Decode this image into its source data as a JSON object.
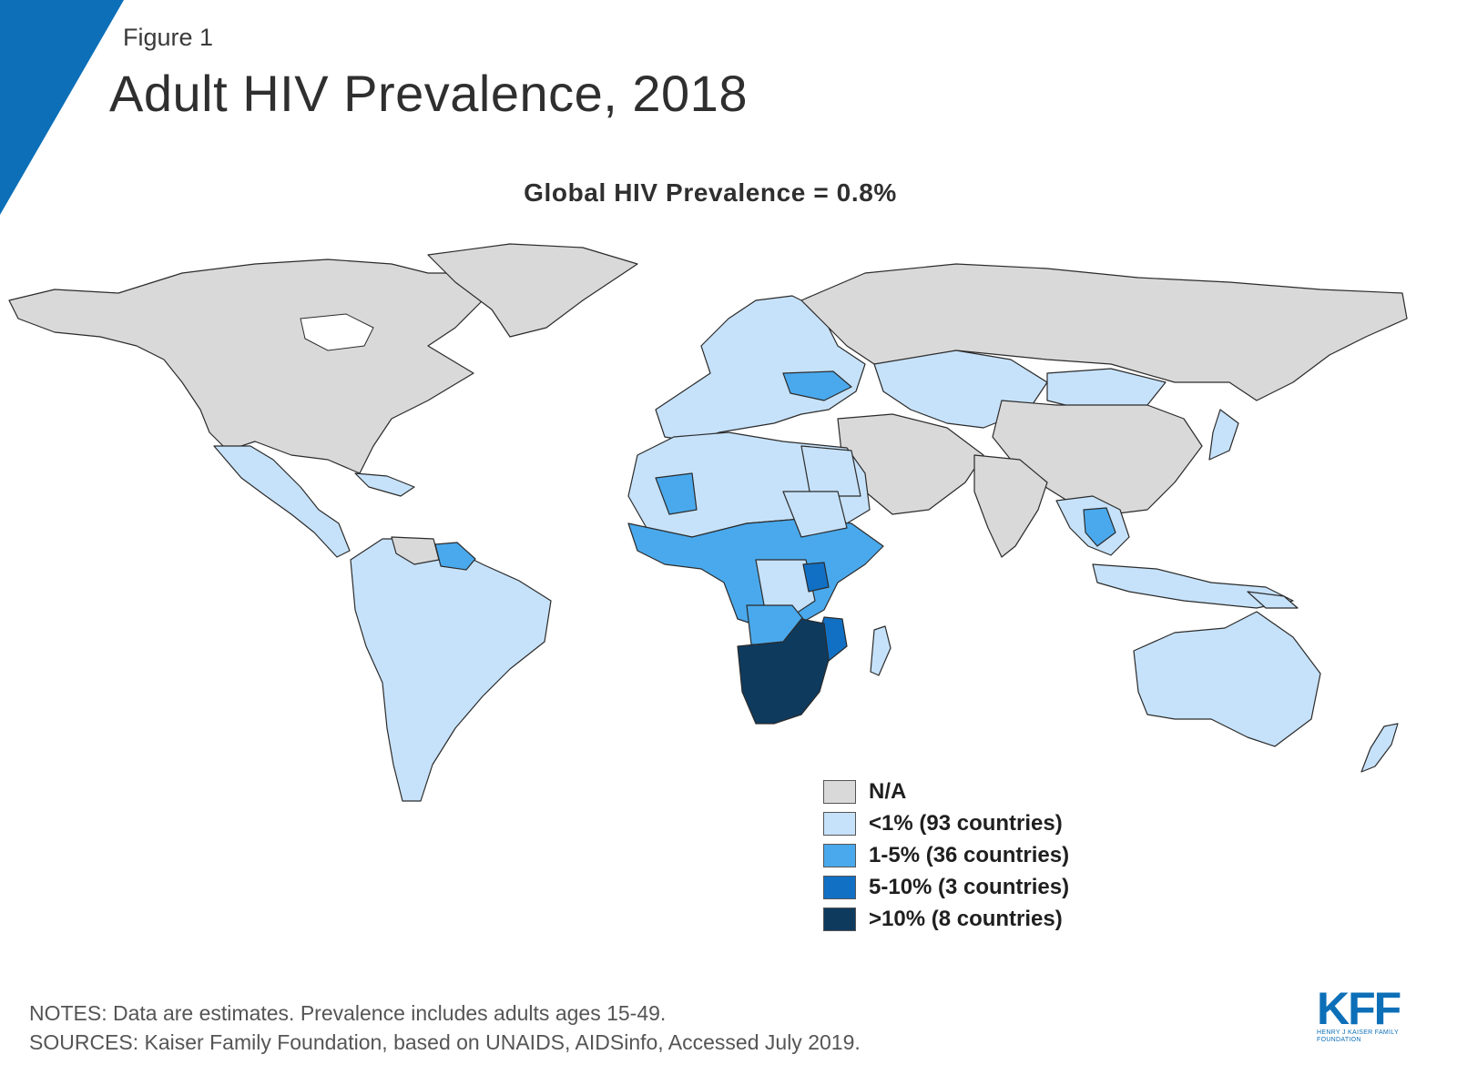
{
  "header": {
    "figure_label": "Figure 1",
    "title": "Adult HIV Prevalence, 2018",
    "subtitle": "Global HIV  Prevalence = 0.8%"
  },
  "colors": {
    "accent": "#0c6fb8",
    "na": "#d9d9d9",
    "lt1": "#c6e2fa",
    "p1to5": "#4aa9ec",
    "p5to10": "#1170c4",
    "gt10": "#0e3a5e",
    "border": "#2b2b2b"
  },
  "legend": {
    "items": [
      {
        "label": "N/A",
        "color": "#d9d9d9"
      },
      {
        "label": "<1% (93 countries)",
        "color": "#c6e2fa"
      },
      {
        "label": "1-5% (36 countries)",
        "color": "#4aa9ec"
      },
      {
        "label": "5-10% (3 countries)",
        "color": "#1170c4"
      },
      {
        "label": ">10% (8 countries)",
        "color": "#0e3a5e"
      }
    ]
  },
  "footer": {
    "notes": "NOTES: Data are estimates. Prevalence includes adults ages 15-49.",
    "sources": "SOURCES: Kaiser Family Foundation, based on UNAIDS, AIDSinfo, Accessed July 2019."
  },
  "logo": {
    "wordmark": "KFF",
    "subline": "HENRY J KAISER FAMILY FOUNDATION"
  }
}
